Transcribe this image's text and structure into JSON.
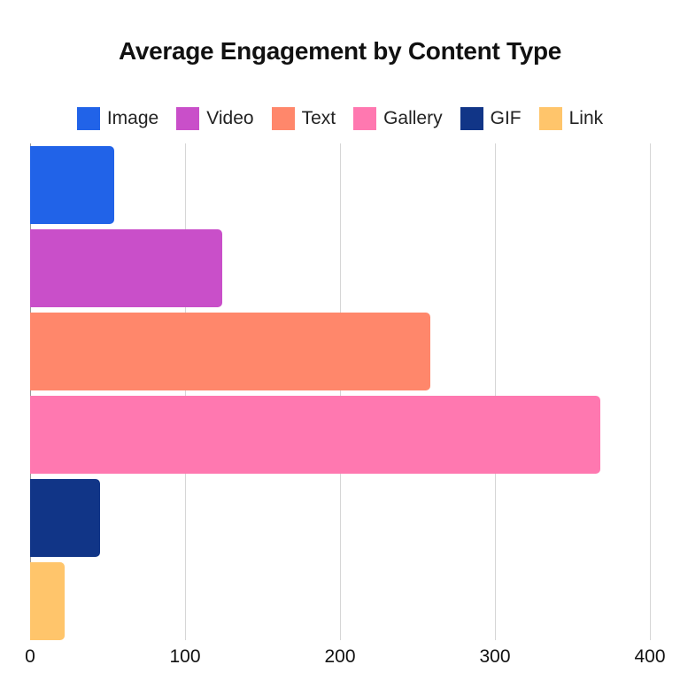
{
  "chart_data": {
    "type": "bar",
    "orientation": "horizontal",
    "title": "Average Engagement by Content Type",
    "xlabel": "",
    "ylabel": "",
    "categories": [
      "Image",
      "Video",
      "Text",
      "Gallery",
      "GIF",
      "Link"
    ],
    "values": [
      54,
      124,
      258,
      368,
      45,
      22
    ],
    "colors": [
      "#2163e8",
      "#c94fc9",
      "#ff876b",
      "#ff78b0",
      "#113587",
      "#ffc56b"
    ],
    "xlim": [
      0,
      400
    ],
    "xticks": [
      "0",
      "100",
      "200",
      "300",
      "400"
    ],
    "grid": true,
    "legend_position": "top",
    "legend": [
      "Image",
      "Video",
      "Text",
      "Gallery",
      "GIF",
      "Link"
    ]
  }
}
